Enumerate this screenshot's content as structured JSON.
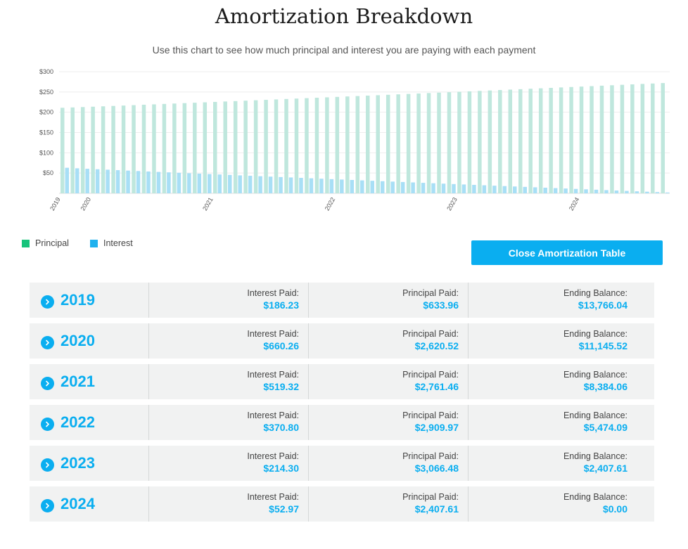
{
  "header": {
    "title": "Amortization Breakdown",
    "subtitle": "Use this chart to see how much principal and interest you are paying with each payment"
  },
  "legend": {
    "principal_label": "Principal",
    "interest_label": "Interest",
    "principal_color": "#17c37b",
    "interest_color": "#1fb1ee"
  },
  "close_button_label": "Close Amortization Table",
  "chart_data": {
    "type": "bar",
    "y_ticks": [
      "$300",
      "$250",
      "$200",
      "$150",
      "$100",
      "$50"
    ],
    "ylim": [
      0,
      300
    ],
    "x_labels": [
      "2019",
      "2020",
      "2021",
      "2022",
      "2023",
      "2024"
    ],
    "x_label_months": [
      0,
      3,
      15,
      27,
      39,
      51
    ],
    "series": [
      {
        "name": "Principal",
        "color": "#bfe7dd",
        "start": 211,
        "end": 272
      },
      {
        "name": "Interest",
        "color": "#a8dff6",
        "start": 63,
        "end": 2
      }
    ],
    "months": 60
  },
  "rows": [
    {
      "year": "2019",
      "interest_label": "Interest Paid:",
      "interest": "$186.23",
      "principal_label": "Principal Paid:",
      "principal": "$633.96",
      "balance_label": "Ending Balance:",
      "balance": "$13,766.04"
    },
    {
      "year": "2020",
      "interest_label": "Interest Paid:",
      "interest": "$660.26",
      "principal_label": "Principal Paid:",
      "principal": "$2,620.52",
      "balance_label": "Ending Balance:",
      "balance": "$11,145.52"
    },
    {
      "year": "2021",
      "interest_label": "Interest Paid:",
      "interest": "$519.32",
      "principal_label": "Principal Paid:",
      "principal": "$2,761.46",
      "balance_label": "Ending Balance:",
      "balance": "$8,384.06"
    },
    {
      "year": "2022",
      "interest_label": "Interest Paid:",
      "interest": "$370.80",
      "principal_label": "Principal Paid:",
      "principal": "$2,909.97",
      "balance_label": "Ending Balance:",
      "balance": "$5,474.09"
    },
    {
      "year": "2023",
      "interest_label": "Interest Paid:",
      "interest": "$214.30",
      "principal_label": "Principal Paid:",
      "principal": "$3,066.48",
      "balance_label": "Ending Balance:",
      "balance": "$2,407.61"
    },
    {
      "year": "2024",
      "interest_label": "Interest Paid:",
      "interest": "$52.97",
      "principal_label": "Principal Paid:",
      "principal": "$2,407.61",
      "balance_label": "Ending Balance:",
      "balance": "$0.00"
    }
  ]
}
